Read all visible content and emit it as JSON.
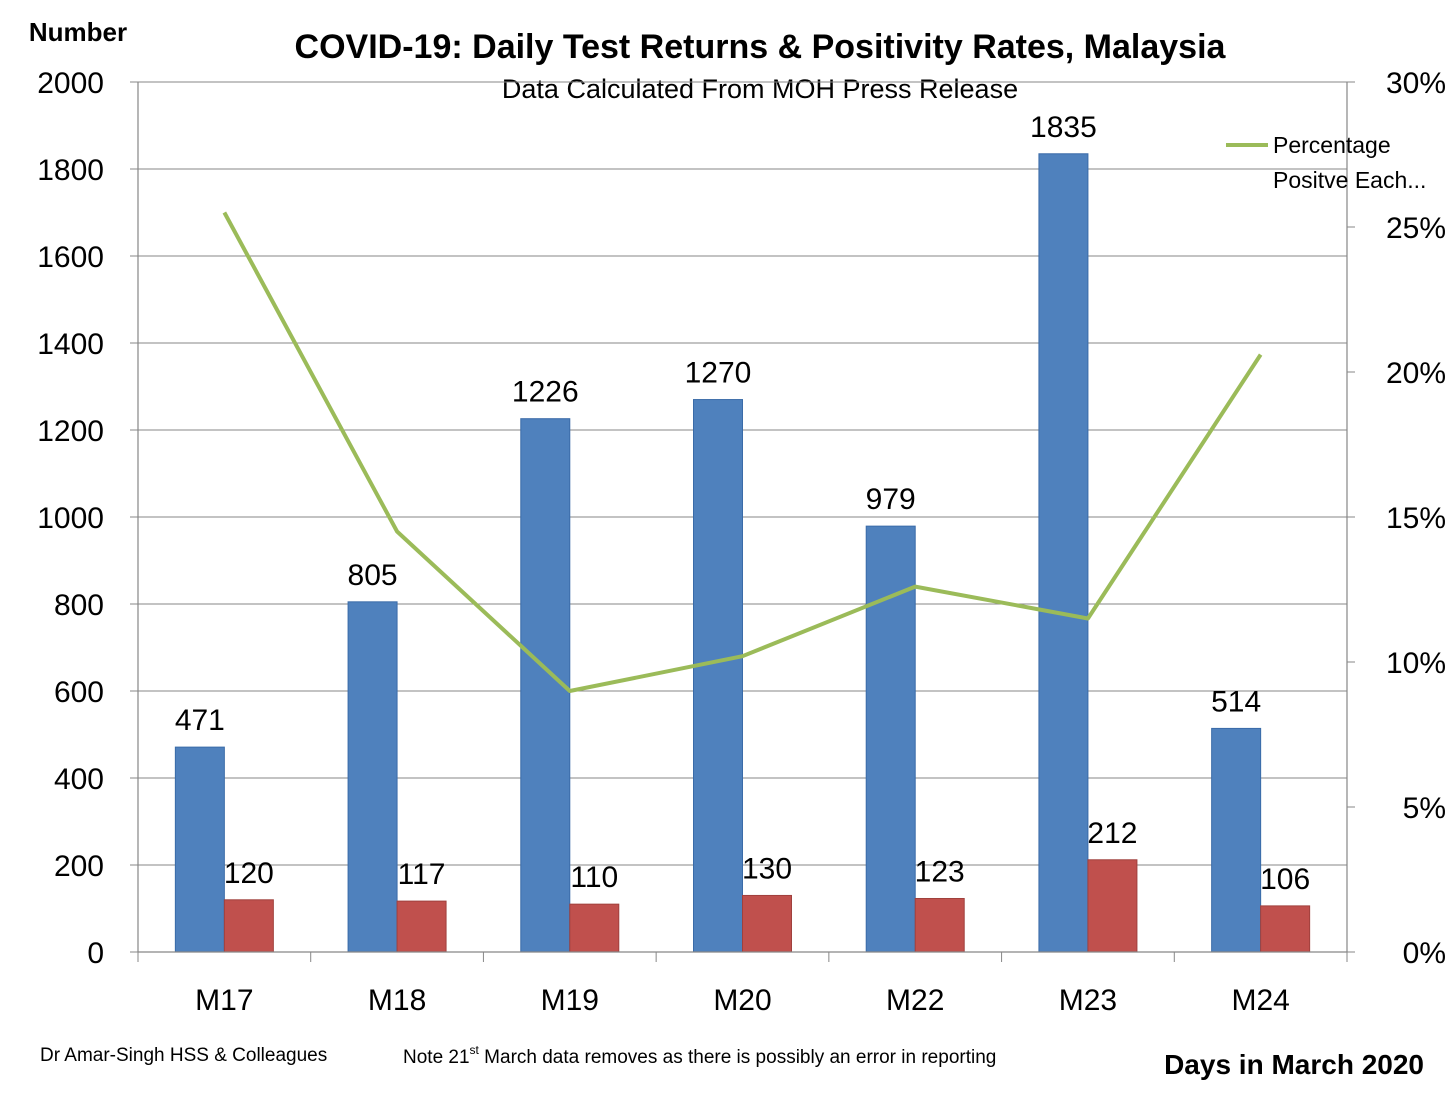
{
  "chart_data": {
    "type": "bar",
    "title": "COVID-19: Daily Test Returns & Positivity Rates, Malaysia",
    "subtitle": "Data Calculated From MOH Press Release",
    "ylabel": "Number",
    "xlabel": "Days in March 2020",
    "categories": [
      "M17",
      "M18",
      "M19",
      "M20",
      "M22",
      "M23",
      "M24"
    ],
    "ylim": [
      0,
      2000
    ],
    "yticks": [
      "0",
      "200",
      "400",
      "600",
      "800",
      "1000",
      "1200",
      "1400",
      "1600",
      "1800",
      "2000"
    ],
    "y2lim": [
      0,
      30
    ],
    "y2ticks": [
      "0%",
      "5%",
      "10%",
      "15%",
      "20%",
      "25%",
      "30%"
    ],
    "grid": true,
    "series": [
      {
        "name": "",
        "kind": "bar",
        "color": "#4F81BD",
        "values": [
          471,
          805,
          1226,
          1270,
          979,
          1835,
          514
        ]
      },
      {
        "name": "",
        "kind": "bar",
        "color": "#C0504D",
        "values": [
          120,
          117,
          110,
          130,
          123,
          212,
          106
        ]
      },
      {
        "name": "Percentage Positve Each...",
        "kind": "line",
        "axis": "secondary",
        "color": "#9BBB59",
        "values": [
          25.5,
          14.5,
          9.0,
          10.2,
          12.6,
          11.5,
          20.6
        ]
      }
    ],
    "legend": {
      "position": "top-right",
      "line1": "Percentage",
      "line2": "Positve Each..."
    }
  },
  "footer": {
    "credit": "Dr Amar-Singh HSS & Colleagues",
    "note_pre": "Note 21",
    "note_sup": "st",
    "note_post": " March data removes as there is possibly an error in reporting"
  }
}
